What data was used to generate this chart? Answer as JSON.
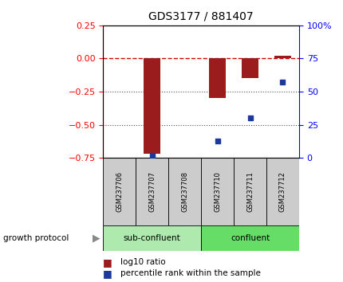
{
  "title": "GDS3177 / 881407",
  "samples": [
    "GSM237706",
    "GSM237707",
    "GSM237708",
    "GSM237710",
    "GSM237711",
    "GSM237712"
  ],
  "log10_ratio": [
    0.0,
    -0.72,
    0.0,
    -0.3,
    -0.15,
    0.02
  ],
  "percentile_rank": [
    null,
    2,
    null,
    13,
    30,
    57
  ],
  "bar_color": "#9B1C1C",
  "dot_color": "#1C3A9B",
  "ylim_left": [
    -0.75,
    0.25
  ],
  "ylim_right": [
    0,
    100
  ],
  "yticks_left": [
    0.25,
    0,
    -0.25,
    -0.5,
    -0.75
  ],
  "yticks_right": [
    100,
    75,
    50,
    25,
    0
  ],
  "ytick_right_labels": [
    "100%",
    "75",
    "50",
    "25",
    "0"
  ],
  "sub_confluent_color": "#AEEAAE",
  "confluent_color": "#66DD66",
  "gray_label_color": "#CCCCCC",
  "ref_line_color": "#CC0000",
  "dotted_line_color": "#555555",
  "bar_width": 0.5,
  "group_label": "growth protocol",
  "legend_items": [
    {
      "color": "#9B1C1C",
      "label": "log10 ratio"
    },
    {
      "color": "#1C3A9B",
      "label": "percentile rank within the sample"
    }
  ]
}
